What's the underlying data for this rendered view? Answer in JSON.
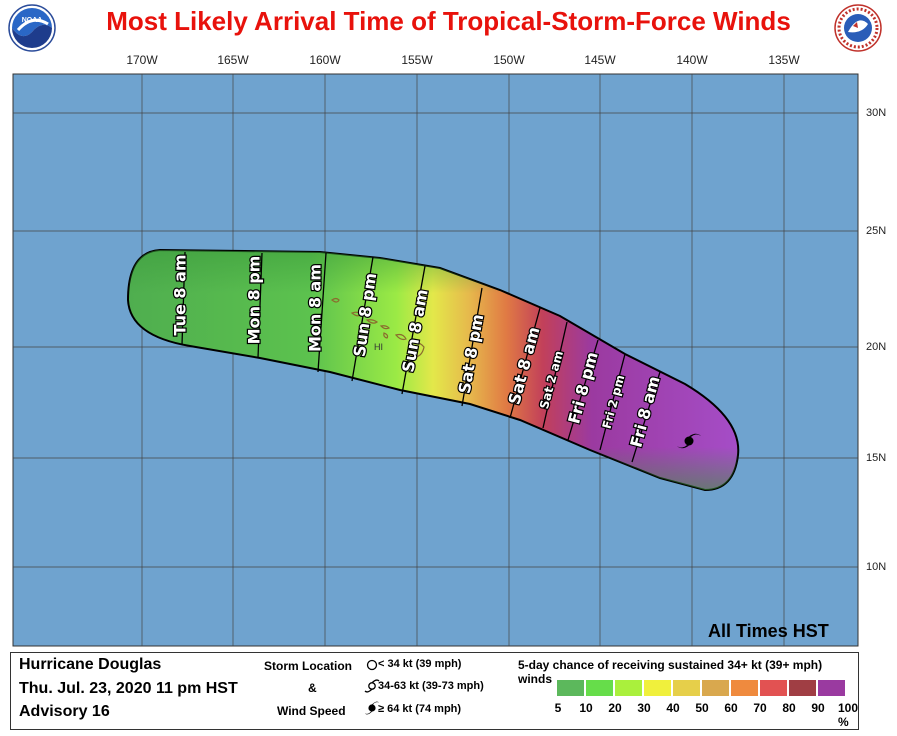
{
  "title": "Most Likely Arrival Time of Tropical-Storm-Force Winds",
  "logos": {
    "left": "noaa-logo",
    "left_text": "NOAA",
    "right": "nws-logo",
    "right_text": "NATIONAL WEATHER SERVICE"
  },
  "map": {
    "ocean_color": "#6fa3cf",
    "longitudes": [
      "170W",
      "165W",
      "160W",
      "155W",
      "150W",
      "145W",
      "140W",
      "135W"
    ],
    "latitudes": [
      "30N",
      "25N",
      "20N",
      "15N",
      "10N"
    ],
    "island_label": "HI",
    "time_labels": [
      "Tue 8 am",
      "Mon 8 pm",
      "Mon 8 am",
      "Sun 8 pm",
      "Sun 8 am",
      "Sat 8 pm",
      "Sat 8 am",
      "Sat 2 am",
      "Fri 8 pm",
      "Fri 2 pm",
      "Fri 8 am"
    ],
    "time_zone_note": "All Times HST"
  },
  "storm": {
    "name": "Hurricane Douglas",
    "date": "Thu. Jul. 23, 2020  11 pm HST",
    "advisory": "Advisory 16"
  },
  "legend": {
    "storm_location_label": "Storm Location",
    "amp": "&",
    "wind_speed_label": "Wind Speed",
    "symbols": [
      {
        "icon": "open-circle-icon",
        "label": "< 34 kt (39 mph)"
      },
      {
        "icon": "tropical-storm-icon",
        "label": "34-63 kt (39-73 mph)"
      },
      {
        "icon": "hurricane-icon",
        "label": "≥ 64 kt (74 mph)"
      }
    ],
    "chance_title": "5-day chance of receiving sustained 34+ kt (39+ mph) winds",
    "color_scale": [
      "#5cb85c",
      "#66dd4a",
      "#aaf03c",
      "#f0f03c",
      "#e6cf4a",
      "#d9a84e",
      "#ef8a3e",
      "#e25252",
      "#a03e44",
      "#9a3aa0",
      "#a64dc7"
    ],
    "percent_labels": [
      "5",
      "10",
      "20",
      "30",
      "40",
      "50",
      "60",
      "70",
      "80",
      "90",
      "100 %"
    ]
  }
}
